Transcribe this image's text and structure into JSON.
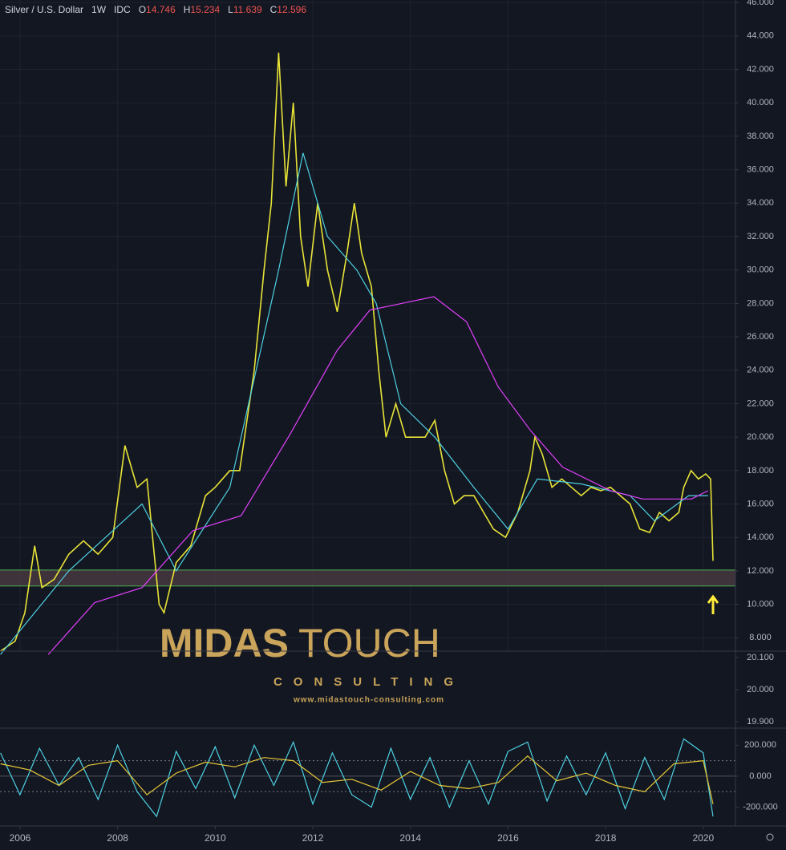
{
  "chart_data": [
    {
      "type": "line",
      "symbol": "Silver / U.S. Dollar",
      "interval": "1W",
      "source": "IDC",
      "ohlc": [
        {
          "label": "O",
          "value": 14.746
        },
        {
          "label": "H",
          "value": 15.234
        },
        {
          "label": "L",
          "value": 11.639
        },
        {
          "label": "C",
          "value": 12.596
        }
      ],
      "xlim": [
        2005.59,
        2020.66
      ],
      "ylim": [
        7.2,
        46.15
      ],
      "yticks": [
        {
          "value": 8,
          "label": "8.000"
        },
        {
          "value": 10,
          "label": "10.000"
        },
        {
          "value": 12,
          "label": "12.000"
        },
        {
          "value": 14,
          "label": "14.000"
        },
        {
          "value": 16,
          "label": "16.000"
        },
        {
          "value": 18,
          "label": "18.000"
        },
        {
          "value": 20,
          "label": "20.000"
        },
        {
          "value": 22,
          "label": "22.000"
        },
        {
          "value": 24,
          "label": "24.000"
        },
        {
          "value": 26,
          "label": "26.000"
        },
        {
          "value": 28,
          "label": "28.000"
        },
        {
          "value": 30,
          "label": "30.000"
        },
        {
          "value": 32,
          "label": "32.000"
        },
        {
          "value": 34,
          "label": "34.000"
        },
        {
          "value": 36,
          "label": "36.000"
        },
        {
          "value": 38,
          "label": "38.000"
        },
        {
          "value": 40,
          "label": "40.000"
        },
        {
          "value": 42,
          "label": "42.000"
        },
        {
          "value": 44,
          "label": "44.000"
        },
        {
          "value": 46,
          "label": "46.000"
        }
      ],
      "grid": true,
      "zone": {
        "range": [
          11.1,
          12.05
        ],
        "color": "#4a3a42",
        "line_color": "#4caf50"
      },
      "series": [
        {
          "color": "#e8e337",
          "x": [
            2005.6,
            2005.9,
            2006.1,
            2006.3,
            2006.45,
            2006.7,
            2007.0,
            2007.3,
            2007.6,
            2007.9,
            2008.15,
            2008.4,
            2008.6,
            2008.75,
            2008.85,
            2008.95,
            2009.2,
            2009.5,
            2009.8,
            2010.0,
            2010.3,
            2010.5,
            2010.8,
            2011.0,
            2011.15,
            2011.3,
            2011.45,
            2011.6,
            2011.75,
            2011.9,
            2012.1,
            2012.3,
            2012.5,
            2012.7,
            2012.85,
            2013.0,
            2013.2,
            2013.35,
            2013.5,
            2013.7,
            2013.9,
            2014.1,
            2014.3,
            2014.5,
            2014.7,
            2014.9,
            2015.1,
            2015.3,
            2015.5,
            2015.7,
            2015.95,
            2016.2,
            2016.45,
            2016.55,
            2016.7,
            2016.9,
            2017.1,
            2017.3,
            2017.5,
            2017.7,
            2017.9,
            2018.1,
            2018.3,
            2018.5,
            2018.7,
            2018.9,
            2019.1,
            2019.3,
            2019.5,
            2019.6,
            2019.75,
            2019.9,
            2020.05,
            2020.15,
            2020.2
          ],
          "values": [
            7.2,
            7.8,
            9.5,
            13.5,
            11,
            11.5,
            13,
            13.8,
            13,
            14,
            19.5,
            17,
            17.5,
            13,
            10,
            9.5,
            12.5,
            13.5,
            16.5,
            17,
            18,
            18,
            24,
            30,
            34,
            43,
            35,
            40,
            32,
            29,
            34,
            30,
            27.5,
            31,
            34,
            31,
            29,
            24,
            20,
            22,
            20,
            20,
            20,
            21,
            18,
            16,
            16.5,
            16.5,
            15.5,
            14.5,
            14,
            15.5,
            18,
            20,
            19,
            17,
            17.5,
            17,
            16.5,
            17,
            16.8,
            17,
            16.5,
            16,
            14.5,
            14.3,
            15.5,
            15,
            15.5,
            17,
            18,
            17.5,
            17.8,
            17.5,
            12.6
          ]
        },
        {
          "color": "#4dd0e1",
          "x": [
            2005.6,
            2007.0,
            2008.5,
            2009.2,
            2010.3,
            2011.3,
            2011.8,
            2012.3,
            2012.9,
            2013.3,
            2013.8,
            2014.5,
            2015.3,
            2016.0,
            2016.6,
            2017.5,
            2018.5,
            2019.0,
            2019.7,
            2020.1
          ],
          "values": [
            7,
            12,
            16,
            12,
            17,
            30,
            37,
            32,
            30,
            28,
            22,
            20,
            17,
            14.5,
            17.5,
            17.2,
            16.5,
            15,
            16.5,
            16.5
          ]
        },
        {
          "color": "#e040fb",
          "x": [
            2006.58,
            2007.53,
            2008.5,
            2009.54,
            2010.53,
            2011.52,
            2012.5,
            2013.17,
            2014.48,
            2015.15,
            2015.8,
            2016.46,
            2017.12,
            2018.1,
            2018.76,
            2019.76,
            2020.1
          ],
          "values": [
            7.0,
            10.1,
            11,
            14.4,
            15.3,
            20.1,
            25.2,
            27.6,
            28.4,
            26.9,
            23,
            20.4,
            18.2,
            16.8,
            16.3,
            16.3,
            16.8
          ]
        }
      ]
    },
    {
      "type": "line",
      "xlim": [
        2005.59,
        2020.66
      ],
      "ylim": [
        19.88,
        20.12
      ],
      "yticks": [
        {
          "value": 19.9,
          "label": "19.900"
        },
        {
          "value": 20,
          "label": "20.000"
        },
        {
          "value": 20.1,
          "label": "20.100"
        }
      ],
      "series": []
    },
    {
      "type": "line",
      "xlim": [
        2005.59,
        2020.66
      ],
      "ylim": [
        -321,
        310
      ],
      "yticks": [
        {
          "value": -200,
          "label": "-200.000"
        },
        {
          "value": 0,
          "label": "0.000"
        },
        {
          "value": 200,
          "label": "200.000"
        }
      ],
      "levels": [
        -100,
        100
      ],
      "xticks": [
        2006,
        2008,
        2010,
        2012,
        2014,
        2016,
        2018,
        2020
      ],
      "series": [
        {
          "color": "#4dd0e1",
          "x": [
            2005.6,
            2006.0,
            2006.4,
            2006.8,
            2007.2,
            2007.6,
            2008.0,
            2008.4,
            2008.8,
            2009.2,
            2009.6,
            2010.0,
            2010.4,
            2010.8,
            2011.2,
            2011.6,
            2012.0,
            2012.4,
            2012.8,
            2013.2,
            2013.6,
            2014.0,
            2014.4,
            2014.8,
            2015.2,
            2015.6,
            2016.0,
            2016.4,
            2016.8,
            2017.2,
            2017.6,
            2018.0,
            2018.4,
            2018.8,
            2019.2,
            2019.6,
            2020.0,
            2020.2
          ],
          "values": [
            150,
            -120,
            180,
            -60,
            120,
            -150,
            200,
            -100,
            -260,
            160,
            -80,
            190,
            -140,
            200,
            -60,
            220,
            -180,
            150,
            -120,
            -200,
            180,
            -150,
            120,
            -200,
            100,
            -180,
            160,
            220,
            -160,
            130,
            -120,
            150,
            -210,
            120,
            -150,
            240,
            150,
            -260
          ]
        },
        {
          "color": "#e8c837",
          "x": [
            2005.6,
            2006.2,
            2006.8,
            2007.4,
            2008.0,
            2008.6,
            2009.2,
            2009.8,
            2010.4,
            2011.0,
            2011.6,
            2012.2,
            2012.8,
            2013.4,
            2014.0,
            2014.6,
            2015.2,
            2015.8,
            2016.4,
            2017.0,
            2017.6,
            2018.2,
            2018.8,
            2019.4,
            2020.0,
            2020.2
          ],
          "values": [
            80,
            40,
            -60,
            70,
            100,
            -120,
            20,
            90,
            60,
            120,
            100,
            -40,
            -20,
            -90,
            30,
            -60,
            -80,
            -40,
            130,
            -30,
            20,
            -60,
            -100,
            80,
            100,
            -180
          ]
        }
      ]
    }
  ],
  "watermark": {
    "brand_a": "MIDAS",
    "brand_b": "TOUCH",
    "tagline": "CONSULTING",
    "url": "www.midastouch-consulting.com"
  }
}
